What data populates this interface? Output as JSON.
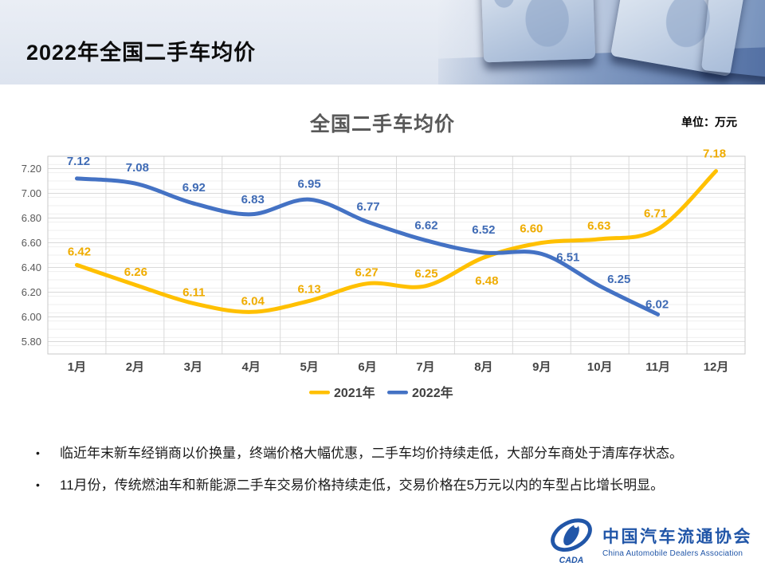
{
  "page": {
    "title": "2022年全国二手车均价"
  },
  "chart_data": {
    "type": "line",
    "title": "全国二手车均价",
    "unit": "单位：万元",
    "categories": [
      "1月",
      "2月",
      "3月",
      "4月",
      "5月",
      "6月",
      "7月",
      "8月",
      "9月",
      "10月",
      "11月",
      "12月"
    ],
    "series": [
      {
        "name": "2021年",
        "color": "#FFC000",
        "label_color": "#EFAC00",
        "values": [
          6.42,
          6.26,
          6.11,
          6.04,
          6.13,
          6.27,
          6.25,
          6.48,
          6.6,
          6.63,
          6.71,
          7.18
        ],
        "label_offsets": [
          [
            3,
            -17
          ],
          [
            1,
            -16
          ],
          [
            1,
            -14
          ],
          [
            2,
            -14
          ],
          [
            0,
            -15
          ],
          [
            -1,
            -14
          ],
          [
            1,
            -16
          ],
          [
            4,
            29
          ],
          [
            -13,
            -18
          ],
          [
            -1,
            -17
          ],
          [
            -3,
            -20
          ],
          [
            -2,
            -22
          ]
        ]
      },
      {
        "name": "2022年",
        "color": "#4472C4",
        "label_color": "#3F6BB5",
        "values": [
          7.12,
          7.08,
          6.92,
          6.83,
          6.95,
          6.77,
          6.62,
          6.52,
          6.51,
          6.25,
          6.02
        ],
        "label_offsets": [
          [
            2,
            -22
          ],
          [
            3,
            -20
          ],
          [
            1,
            -20
          ],
          [
            2,
            -19
          ],
          [
            0,
            -20
          ],
          [
            1,
            -19
          ],
          [
            1,
            -19
          ],
          [
            0,
            -29
          ],
          [
            33,
            4
          ],
          [
            24,
            -9
          ],
          [
            -1,
            -13
          ]
        ]
      }
    ],
    "ylim": [
      5.7,
      7.3
    ],
    "yticks": [
      5.8,
      6.0,
      6.2,
      6.4,
      6.6,
      6.8,
      7.0,
      7.2
    ],
    "grid": {
      "major": true,
      "minor": true,
      "vertical": true
    },
    "legend_position": "bottom",
    "axis_color": "#595959",
    "xlabel_color": "#454545",
    "legend_text_color": "#404040",
    "gridline_major_color": "#D9D9D9",
    "gridline_minor_color": "#EFEFEF",
    "plot_border_color": "#C9C9C9"
  },
  "bullets": [
    "临近年末新车经销商以价换量，终端价格大幅优惠，二手车均价持续走低，大部分车商处于清库存状态。",
    "11月份，传统燃油车和新能源二手车交易价格持续走低，交易价格在5万元以内的车型占比增长明显。"
  ],
  "footer_logo": {
    "acronym": "CADA",
    "name_zh": "中国汽车流通协会",
    "name_en": "China Automobile Dealers Association",
    "color": "#2156A8"
  }
}
